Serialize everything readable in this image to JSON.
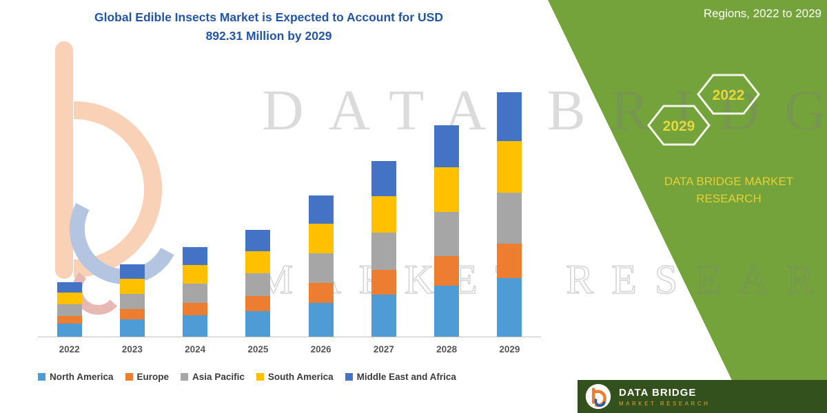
{
  "title": {
    "line1": "Global Edible Insects Market is Expected to Account for USD",
    "line2": "892.31 Million by 2029"
  },
  "side_panel": {
    "heading": "Regions, 2022 to 2029",
    "hexagon_left_year": "2029",
    "hexagon_right_year": "2022",
    "brand_line1": "DATA BRIDGE MARKET",
    "brand_line2": "RESEARCH"
  },
  "watermark": {
    "row1": "DATA BRIDGE",
    "row2": "MARKET RESEARCH"
  },
  "footer": {
    "brand": "DATA BRIDGE",
    "brand_sub": "MARKET RESEARCH"
  },
  "colors": {
    "green_panel": "#74a33c",
    "footer_green": "#33511c",
    "title_blue": "#2355a4",
    "hex_year_yellow": "#e5d83a"
  },
  "chart_data": {
    "type": "bar",
    "stacked": true,
    "title": "Global Edible Insects Market is Expected to Account for USD 892.31 Million by 2029",
    "unit": "USD Million",
    "categories": [
      "2022",
      "2023",
      "2024",
      "2025",
      "2026",
      "2027",
      "2028",
      "2029"
    ],
    "series": [
      {
        "name": "North America",
        "color": "#4f9bd5",
        "values": [
          48,
          63,
          78,
          94,
          124,
          154,
          185,
          214
        ]
      },
      {
        "name": "Europe",
        "color": "#ed7d31",
        "values": [
          28,
          37,
          46,
          55,
          72,
          90,
          108,
          125
        ]
      },
      {
        "name": "Asia Pacific",
        "color": "#a6a6a6",
        "values": [
          42,
          55,
          69,
          82,
          108,
          135,
          162,
          187
        ]
      },
      {
        "name": "South America",
        "color": "#ffc000",
        "values": [
          42,
          56,
          69,
          82,
          108,
          134,
          162,
          187
        ]
      },
      {
        "name": "Middle East and Africa",
        "color": "#4472c4",
        "values": [
          40,
          53,
          65,
          77,
          103,
          128,
          155,
          179
        ]
      }
    ],
    "totals": [
      200,
      264,
      327,
      390,
      515,
      641,
      772,
      892
    ],
    "ylim": [
      0,
      950
    ],
    "grid": false,
    "legend_position": "bottom"
  }
}
